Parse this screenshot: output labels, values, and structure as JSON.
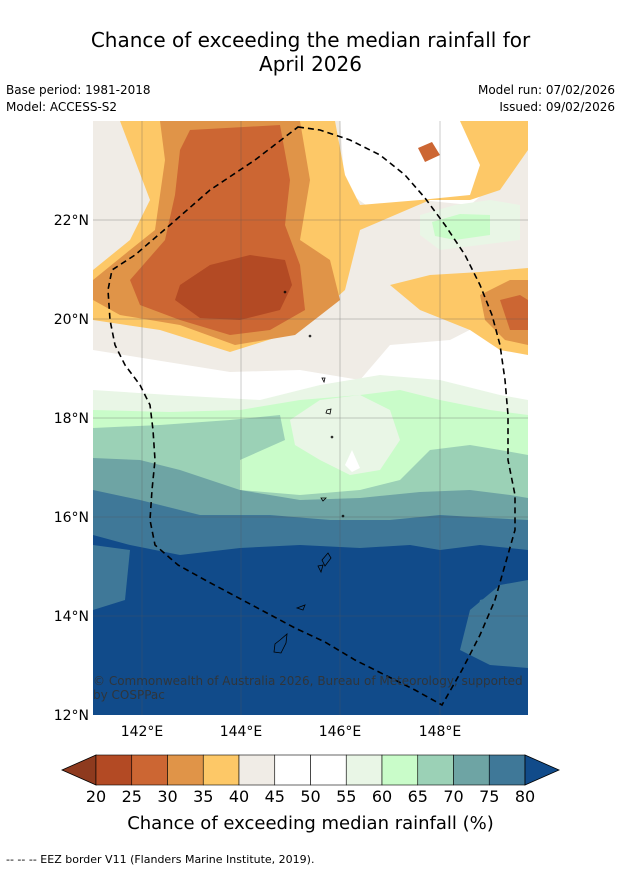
{
  "header": {
    "title_line1": "Chance of exceeding the median rainfall for",
    "title_line2": "April 2026",
    "base_period": "Base period: 1981-2018",
    "model": "Model: ACCESS-S2",
    "model_run": "Model run: 07/02/2026",
    "issued": "Issued: 09/02/2026"
  },
  "map": {
    "lat_labels": [
      "22°N",
      "20°N",
      "18°N",
      "16°N",
      "14°N",
      "12°N"
    ],
    "lon_labels": [
      "142°E",
      "144°E",
      "146°E",
      "148°E"
    ],
    "copyright": "© Commonwealth of Australia 2026, Bureau of Meteorology, supported",
    "copyright2": "by COSPPac"
  },
  "colorbar": {
    "ticks": [
      "20",
      "25",
      "30",
      "35",
      "40",
      "45",
      "50",
      "55",
      "60",
      "65",
      "70",
      "75",
      "80"
    ],
    "colors": [
      "#8e3a1e",
      "#b34a24",
      "#cc6633",
      "#e09448",
      "#fdc867",
      "#f0ece6",
      "#ffffff",
      "#ffffff",
      "#e9f6e6",
      "#c9fcc9",
      "#9bd1b6",
      "#6ea4a4",
      "#3f7898",
      "#114b8a"
    ],
    "title": "Chance of exceeding median rainfall (%)"
  },
  "footer": {
    "legend_text": "--  --  -- EEZ border V11 (Flanders Marine Institute, 2019)."
  }
}
